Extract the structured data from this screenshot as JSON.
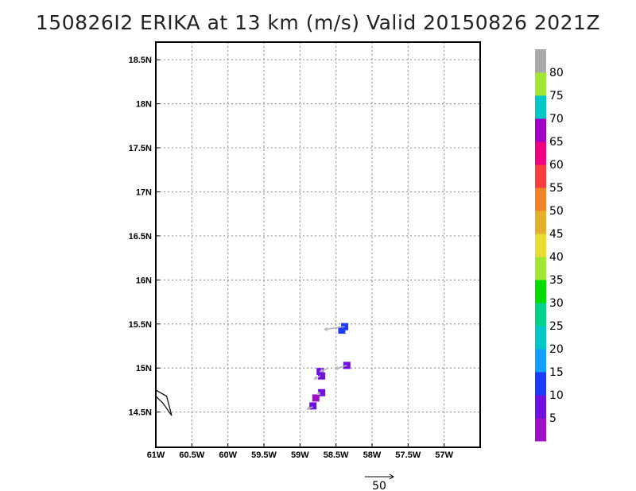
{
  "title": "150826I2 ERIKA at 13 km (m/s) Valid 20150826 2021Z",
  "chart_data": {
    "type": "scatter",
    "title": "150826I2 ERIKA at 13 km (m/s) Valid 20150826 2021Z",
    "xlim": [
      -61.0,
      -56.5
    ],
    "ylim": [
      14.1,
      18.7
    ],
    "x_ticks": [
      -61,
      -60.5,
      -60,
      -59.5,
      -59,
      -58.5,
      -58,
      -57.5,
      -57
    ],
    "x_tick_labels": [
      "61W",
      "60.5W",
      "60W",
      "59.5W",
      "59W",
      "58.5W",
      "58W",
      "57.5W",
      "57W"
    ],
    "y_ticks": [
      14.5,
      15,
      15.5,
      16,
      16.5,
      17,
      17.5,
      18,
      18.5
    ],
    "y_tick_labels": [
      "14.5N",
      "15N",
      "15.5N",
      "16N",
      "16.5N",
      "17N",
      "17.5N",
      "18N",
      "18.5N"
    ],
    "grid": true,
    "colorbar": {
      "labels": [
        "5",
        "10",
        "15",
        "20",
        "25",
        "30",
        "35",
        "40",
        "45",
        "50",
        "55",
        "60",
        "65",
        "70",
        "75",
        "80"
      ],
      "colors": [
        "#a010c8",
        "#7010e0",
        "#1e3cff",
        "#10a0ff",
        "#00c8c8",
        "#00d28c",
        "#00dc00",
        "#a0e632",
        "#e6dc32",
        "#e6af2d",
        "#f08228",
        "#fa3c3c",
        "#f00082",
        "#a000c8",
        "#00c8c8",
        "#a0e632",
        "#aaaaaa"
      ]
    },
    "points": [
      {
        "lon": -58.38,
        "lat": 15.47,
        "wind": 15
      },
      {
        "lon": -58.42,
        "lat": 15.43,
        "wind": 15
      },
      {
        "lon": -58.35,
        "lat": 15.03,
        "wind": 10
      },
      {
        "lon": -58.72,
        "lat": 14.96,
        "wind": 10
      },
      {
        "lon": -58.7,
        "lat": 14.91,
        "wind": 10
      },
      {
        "lon": -58.7,
        "lat": 14.72,
        "wind": 10
      },
      {
        "lon": -58.78,
        "lat": 14.66,
        "wind": 5
      },
      {
        "lon": -58.82,
        "lat": 14.57,
        "wind": 10
      }
    ],
    "vectors": [
      {
        "lon": -58.38,
        "lat": 15.47,
        "u": -35,
        "v": -5
      },
      {
        "lon": -58.35,
        "lat": 15.03,
        "u": -20,
        "v": -6
      },
      {
        "lon": -58.6,
        "lat": 15.0,
        "u": -15,
        "v": -6
      },
      {
        "lon": -58.72,
        "lat": 14.91,
        "u": -10,
        "v": -5
      },
      {
        "lon": -58.72,
        "lat": 14.72,
        "u": -5,
        "v": -3
      },
      {
        "lon": -58.82,
        "lat": 14.56,
        "u": -10,
        "v": -4
      }
    ],
    "vector_key": {
      "label": "50",
      "value": 50
    }
  },
  "coastline": [
    [
      -61.0,
      14.75
    ],
    [
      -60.85,
      14.68
    ],
    [
      -60.78,
      14.46
    ],
    [
      -60.9,
      14.6
    ],
    [
      -61.0,
      14.68
    ]
  ]
}
